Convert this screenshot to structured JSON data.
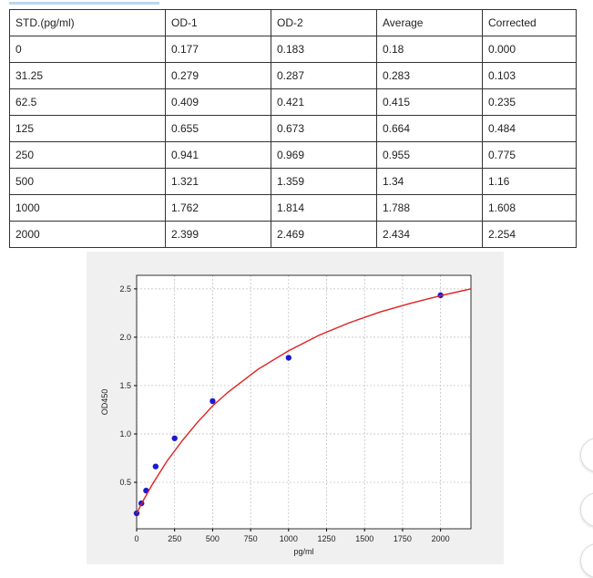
{
  "table": {
    "header": [
      "STD.(pg/ml)",
      "OD-1",
      "OD-2",
      "Average",
      "Corrected"
    ],
    "rows": [
      [
        "0",
        "0.177",
        "0.183",
        "0.18",
        "0.000"
      ],
      [
        "31.25",
        "0.279",
        "0.287",
        "0.283",
        "0.103"
      ],
      [
        "62.5",
        "0.409",
        "0.421",
        "0.415",
        "0.235"
      ],
      [
        "125",
        "0.655",
        "0.673",
        "0.664",
        "0.484"
      ],
      [
        "250",
        "0.941",
        "0.969",
        "0.955",
        "0.775"
      ],
      [
        "500",
        "1.321",
        "1.359",
        "1.34",
        "1.16"
      ],
      [
        "1000",
        "1.762",
        "1.814",
        "1.788",
        "1.608"
      ],
      [
        "2000",
        "2.399",
        "2.469",
        "2.434",
        "2.254"
      ]
    ]
  },
  "chart_data": {
    "type": "scatter",
    "xlabel": "pg/ml",
    "ylabel": "OD450",
    "xlim": [
      0,
      2200
    ],
    "ylim": [
      0.02,
      2.64
    ],
    "xticks": [
      0,
      250,
      500,
      750,
      1000,
      1250,
      1500,
      1750,
      2000
    ],
    "yticks": [
      0.5,
      {
        "value": 1,
        "label": "1.0"
      },
      1.5,
      {
        "value": 2,
        "label": "2.0"
      },
      2.5
    ],
    "grid": true,
    "series": [
      {
        "color": "#1a1ad0",
        "marker": "o",
        "x": [
          0,
          31.25,
          62.5,
          125,
          250,
          500,
          1000,
          2000
        ],
        "values": [
          0.18,
          0.283,
          0.415,
          0.664,
          0.955,
          1.34,
          1.788,
          2.434
        ]
      },
      {
        "color": "#e02020",
        "line": true,
        "x": [
          0,
          50,
          100,
          200,
          300,
          400,
          500,
          600,
          800,
          1000,
          1200,
          1400,
          1600,
          1800,
          2000,
          2200
        ],
        "values": [
          0.18,
          0.33,
          0.47,
          0.72,
          0.93,
          1.12,
          1.29,
          1.43,
          1.67,
          1.86,
          2.02,
          2.15,
          2.26,
          2.35,
          2.43,
          2.5
        ]
      }
    ]
  }
}
